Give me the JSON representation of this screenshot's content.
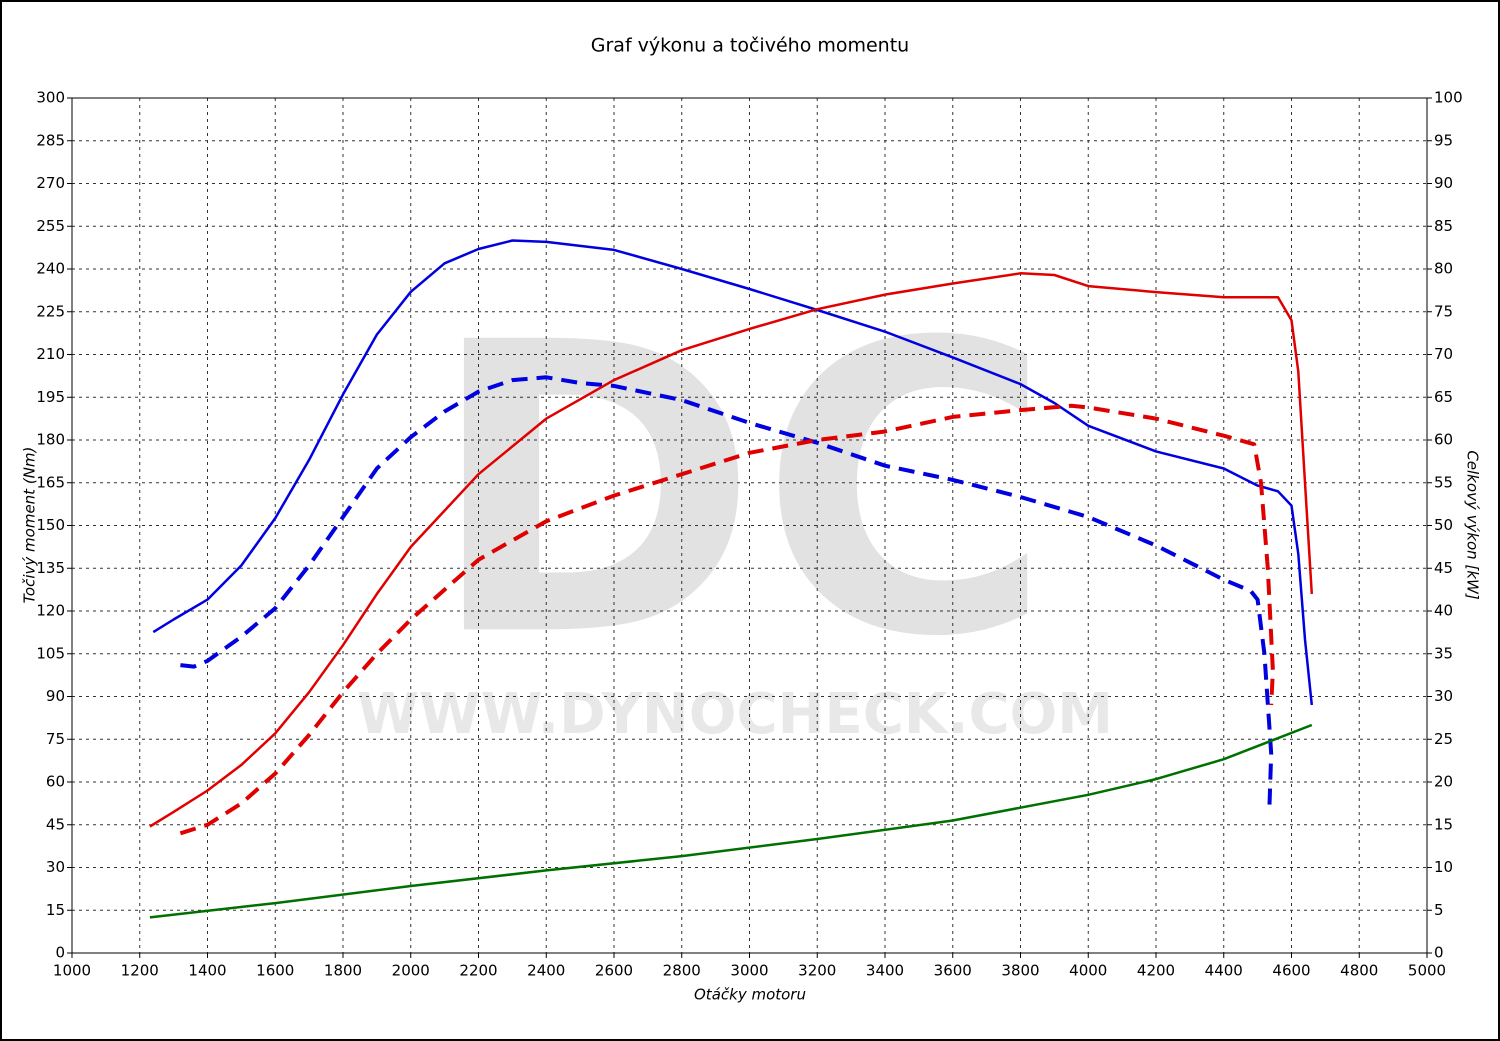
{
  "chart_data": {
    "type": "line",
    "title": "Graf výkonu a točivého momentu",
    "x_label": "Otáčky motoru",
    "y_label": "Točivý moment (Nm)",
    "y2_label": "Celkový výkon [kW]",
    "watermark": "DC",
    "watermark_url": "WWW.DYNOCHECK.COM",
    "grid": true,
    "xlim": [
      1000,
      5000
    ],
    "xticks": [
      1000,
      1200,
      1400,
      1600,
      1800,
      2000,
      2200,
      2400,
      2600,
      2800,
      3000,
      3200,
      3400,
      3600,
      3800,
      4000,
      4200,
      4400,
      4600,
      4800,
      5000
    ],
    "ylim": [
      0,
      300
    ],
    "yticks": [
      0,
      15,
      30,
      45,
      60,
      75,
      90,
      105,
      120,
      135,
      150,
      165,
      180,
      195,
      210,
      225,
      240,
      255,
      270,
      285,
      300
    ],
    "y2lim": [
      0,
      100
    ],
    "y2ticks": [
      0,
      5,
      10,
      15,
      20,
      25,
      30,
      35,
      40,
      45,
      50,
      55,
      60,
      65,
      70,
      75,
      80,
      85,
      90,
      95,
      100
    ],
    "series": [
      {
        "color": "#0000e0",
        "dash": false,
        "axis": "y",
        "x": [
          1240,
          1300,
          1400,
          1500,
          1600,
          1700,
          1800,
          1900,
          2000,
          2100,
          2200,
          2300,
          2400,
          2600,
          2800,
          3000,
          3200,
          3400,
          3600,
          3800,
          3900,
          4000,
          4200,
          4400,
          4500,
          4560,
          4600,
          4620,
          4640,
          4660
        ],
        "values": [
          112.6,
          117,
          124,
          136,
          152.6,
          173,
          196,
          217,
          232,
          242,
          247,
          250,
          249.5,
          246.7,
          240,
          233,
          225.6,
          218,
          209,
          199.6,
          193,
          185,
          176,
          170,
          164,
          162,
          157,
          140,
          110,
          87
        ]
      },
      {
        "color": "#0000e0",
        "dash": true,
        "axis": "y",
        "x": [
          1320,
          1360,
          1400,
          1500,
          1600,
          1700,
          1800,
          1900,
          2000,
          2100,
          2200,
          2300,
          2400,
          2500,
          2600,
          2800,
          3000,
          3200,
          3400,
          3600,
          3800,
          4000,
          4200,
          4400,
          4480,
          4500,
          4520,
          4540,
          4535
        ],
        "values": [
          101,
          100.5,
          102.5,
          111,
          121,
          136,
          153,
          170,
          181,
          190,
          197,
          201,
          202,
          200,
          199,
          194,
          186,
          179,
          171,
          166,
          160,
          153,
          143,
          131,
          127,
          124,
          105,
          70,
          52
        ]
      },
      {
        "color": "#e00000",
        "dash": false,
        "axis": "y2",
        "x": [
          1230,
          1300,
          1400,
          1500,
          1600,
          1700,
          1800,
          1900,
          2000,
          2200,
          2400,
          2600,
          2800,
          3000,
          3200,
          3400,
          3600,
          3800,
          3900,
          4000,
          4200,
          4400,
          4560,
          4600,
          4620,
          4640,
          4660
        ],
        "values": [
          14.8,
          16.5,
          19,
          22,
          25.7,
          30.5,
          36,
          42,
          47.5,
          56,
          62.5,
          67,
          70.5,
          73,
          75.3,
          77,
          78.3,
          79.5,
          79.3,
          78,
          77.3,
          76.7,
          76.7,
          74,
          68,
          55,
          42
        ]
      },
      {
        "color": "#e00000",
        "dash": true,
        "axis": "y2",
        "x": [
          1320,
          1400,
          1500,
          1600,
          1700,
          1800,
          1900,
          2000,
          2200,
          2400,
          2600,
          2800,
          3000,
          3200,
          3400,
          3600,
          3800,
          3950,
          4000,
          4200,
          4400,
          4490,
          4510,
          4530,
          4545,
          4540
        ],
        "values": [
          14,
          15,
          17.5,
          21,
          25.5,
          30.5,
          35,
          39,
          46,
          50.5,
          53.5,
          56,
          58.5,
          60,
          61,
          62.7,
          63.5,
          64,
          63.8,
          62.5,
          60.5,
          59.5,
          55,
          45,
          33,
          29
        ]
      },
      {
        "color": "#007000",
        "dash": false,
        "axis": "y",
        "x": [
          1230,
          1600,
          2000,
          2400,
          2800,
          3200,
          3600,
          4000,
          4200,
          4400,
          4660
        ],
        "values": [
          12.5,
          17.5,
          23.5,
          29,
          34,
          40,
          46.5,
          55.5,
          61,
          68,
          80
        ]
      }
    ]
  }
}
